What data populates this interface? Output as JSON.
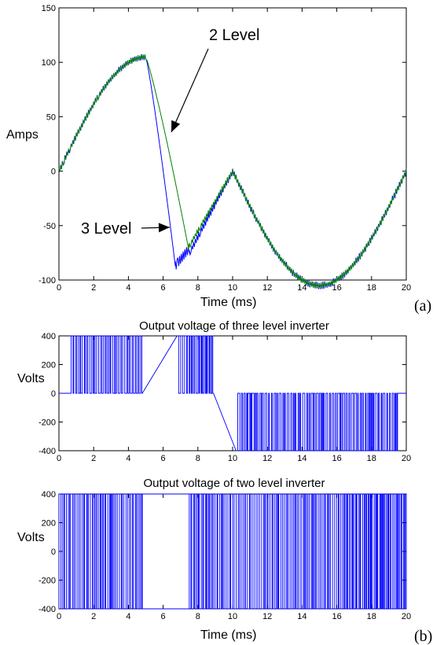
{
  "panel_labels": {
    "a": "(a)",
    "b": "(b)"
  },
  "chart_data": [
    {
      "type": "line",
      "xlabel": "Time (ms)",
      "ylabel": "Amps",
      "xlim": [
        0,
        20
      ],
      "ylim": [
        -100,
        150
      ],
      "xticks": [
        "0",
        "2",
        "4",
        "6",
        "8",
        "10",
        "12",
        "14",
        "16",
        "18",
        "20"
      ],
      "yticks": [
        "150",
        "100",
        "50",
        "0",
        "-50",
        "-100"
      ],
      "grid": false,
      "annotations": [
        "2 Level",
        "3 Level"
      ],
      "series": [
        {
          "name": "2 Level",
          "color": "#008000",
          "x": [
            0,
            2.5,
            5,
            7.45,
            10,
            12.5,
            15,
            17.5,
            20
          ],
          "y": [
            0,
            74,
            105,
            -70,
            -14,
            60,
            105,
            74,
            0
          ]
        },
        {
          "name": "3 Level",
          "color": "#0000ff",
          "x": [
            0,
            2.5,
            5,
            6.7,
            7.5,
            10,
            12.5,
            15,
            17.5,
            20
          ],
          "y": [
            0,
            74,
            105,
            -87,
            -71,
            -14,
            60,
            105,
            74,
            0
          ]
        }
      ]
    },
    {
      "type": "line",
      "title": "Output voltage of three level inverter",
      "ylabel": "Volts",
      "xlim": [
        0,
        20
      ],
      "ylim": [
        -400,
        400
      ],
      "xticks": [
        "0",
        "2",
        "4",
        "6",
        "8",
        "10",
        "12",
        "14",
        "16",
        "18",
        "20"
      ],
      "yticks": [
        "400",
        "200",
        "0",
        "-200",
        "-400"
      ],
      "grid": false,
      "levels": [
        0,
        400,
        -400
      ],
      "segments": [
        {
          "from": 0.7,
          "to": 4.8,
          "level": 400
        },
        {
          "from": 6.8,
          "to": 8.9,
          "level": 400
        },
        {
          "from": 10.2,
          "to": 19.5,
          "level": -400
        }
      ],
      "color": "#0000ff"
    },
    {
      "type": "line",
      "title": "Output voltage of two level inverter",
      "xlabel": "Time (ms)",
      "ylabel": "Volts",
      "xlim": [
        0,
        20
      ],
      "ylim": [
        -400,
        400
      ],
      "xticks": [
        "0",
        "2",
        "4",
        "6",
        "8",
        "10",
        "12",
        "14",
        "16",
        "18",
        "20"
      ],
      "yticks": [
        "400",
        "200",
        "0",
        "-200",
        "-400"
      ],
      "grid": false,
      "levels": [
        400,
        -400
      ],
      "segments": [
        {
          "from": 0,
          "to": 4.8
        },
        {
          "from": 7.5,
          "to": 20
        }
      ],
      "color": "#0000ff"
    }
  ]
}
